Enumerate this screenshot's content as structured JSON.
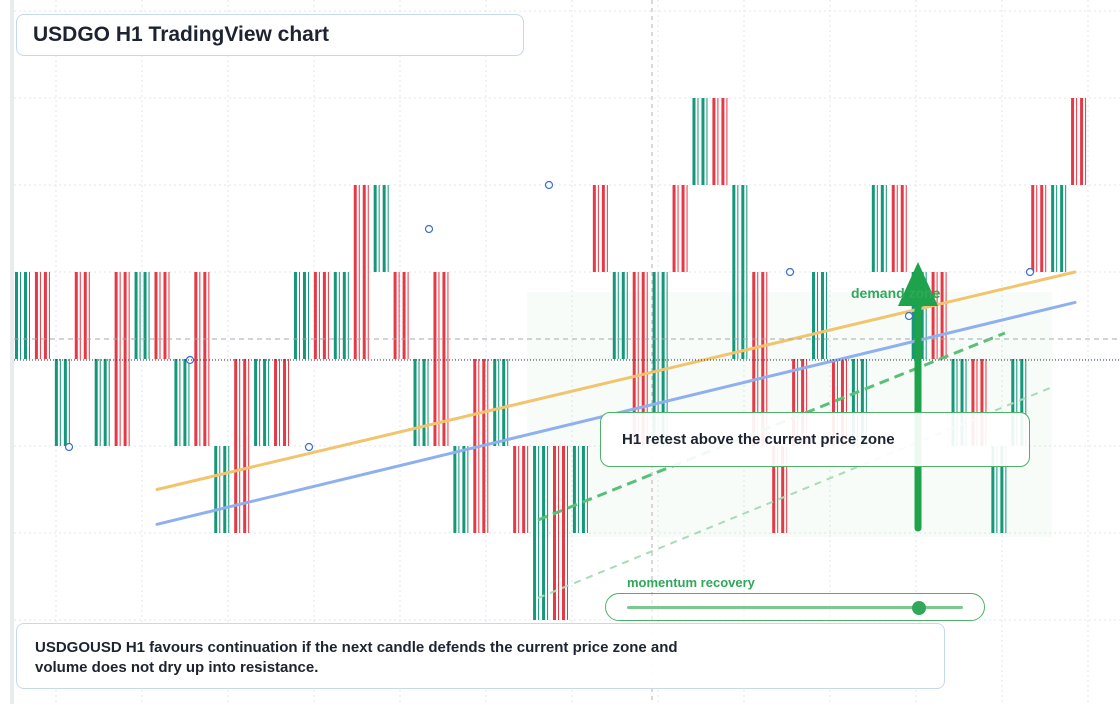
{
  "title": "USDGO H1 TradingView chart",
  "callout": "H1 retest above the current price zone",
  "zone_label": "demand zone",
  "momentum": {
    "label": "momentum recovery",
    "level": 0.87
  },
  "note": {
    "line1": "USDGOUSD H1 favours continuation if the next candle defends the current price zone and",
    "line2": "volume does not dry up into resistance."
  },
  "colors": {
    "bull": "#15977a",
    "bear": "#e63946",
    "ma_fast": "#f2c46d",
    "ma_slow": "#8fb0ee",
    "accent_green": "#2fa85a",
    "grid": "#dfe5ec"
  },
  "chart_data": {
    "type": "candlestick",
    "timeframe": "H1",
    "symbol": "USDGOUSD",
    "title": "USDGO H1 TradingView chart",
    "ylim": [
      0,
      8
    ],
    "current_price": 4.0,
    "grid": true,
    "candles": [
      {
        "o": 4.0,
        "c": 5.0
      },
      {
        "o": 5.0,
        "c": 4.0
      },
      {
        "o": 3.0,
        "c": 4.0
      },
      {
        "o": 5.0,
        "c": 4.0
      },
      {
        "o": 3.0,
        "c": 4.0
      },
      {
        "o": 5.0,
        "c": 3.0
      },
      {
        "o": 4.0,
        "c": 5.0
      },
      {
        "o": 5.0,
        "c": 4.0
      },
      {
        "o": 3.0,
        "c": 4.0
      },
      {
        "o": 5.0,
        "c": 3.0
      },
      {
        "o": 2.0,
        "c": 3.0
      },
      {
        "o": 4.0,
        "c": 2.0
      },
      {
        "o": 3.0,
        "c": 4.0
      },
      {
        "o": 4.0,
        "c": 3.0
      },
      {
        "o": 4.0,
        "c": 5.0
      },
      {
        "o": 5.0,
        "c": 4.0
      },
      {
        "o": 4.0,
        "c": 5.0
      },
      {
        "o": 6.0,
        "c": 4.0
      },
      {
        "o": 5.0,
        "c": 6.0
      },
      {
        "o": 5.0,
        "c": 4.0
      },
      {
        "o": 3.0,
        "c": 4.0
      },
      {
        "o": 5.0,
        "c": 3.0
      },
      {
        "o": 2.0,
        "c": 3.0
      },
      {
        "o": 4.0,
        "c": 2.0
      },
      {
        "o": 3.0,
        "c": 4.0
      },
      {
        "o": 3.0,
        "c": 2.0
      },
      {
        "o": 1.0,
        "c": 3.0
      },
      {
        "o": 3.0,
        "c": 1.0
      },
      {
        "o": 2.0,
        "c": 3.0
      },
      {
        "o": 6.0,
        "c": 5.0
      },
      {
        "o": 4.0,
        "c": 5.0
      },
      {
        "o": 5.0,
        "c": 3.0
      },
      {
        "o": 3.0,
        "c": 5.0
      },
      {
        "o": 6.0,
        "c": 5.0
      },
      {
        "o": 6.0,
        "c": 7.0
      },
      {
        "o": 7.0,
        "c": 6.0
      },
      {
        "o": 4.0,
        "c": 6.0
      },
      {
        "o": 5.0,
        "c": 3.0
      },
      {
        "o": 3.0,
        "c": 2.0
      },
      {
        "o": 4.0,
        "c": 3.0
      },
      {
        "o": 4.0,
        "c": 5.0
      },
      {
        "o": 4.0,
        "c": 3.0
      },
      {
        "o": 3.0,
        "c": 4.0
      },
      {
        "o": 5.0,
        "c": 6.0
      },
      {
        "o": 6.0,
        "c": 5.0
      },
      {
        "o": 4.0,
        "c": 5.0
      },
      {
        "o": 5.0,
        "c": 4.0
      },
      {
        "o": 3.0,
        "c": 4.0
      },
      {
        "o": 4.0,
        "c": 3.0
      },
      {
        "o": 2.0,
        "c": 3.0
      },
      {
        "o": 3.0,
        "c": 4.0
      },
      {
        "o": 6.0,
        "c": 5.0
      },
      {
        "o": 5.0,
        "c": 6.0
      },
      {
        "o": 7.0,
        "c": 6.0
      }
    ],
    "moving_averages": [
      {
        "color": "#f2c46d",
        "points": [
          [
            0,
            2.5
          ],
          [
            1,
            5.0
          ]
        ]
      },
      {
        "color": "#8fb0ee",
        "points": [
          [
            0,
            2.1
          ],
          [
            1,
            4.65
          ]
        ]
      }
    ]
  }
}
